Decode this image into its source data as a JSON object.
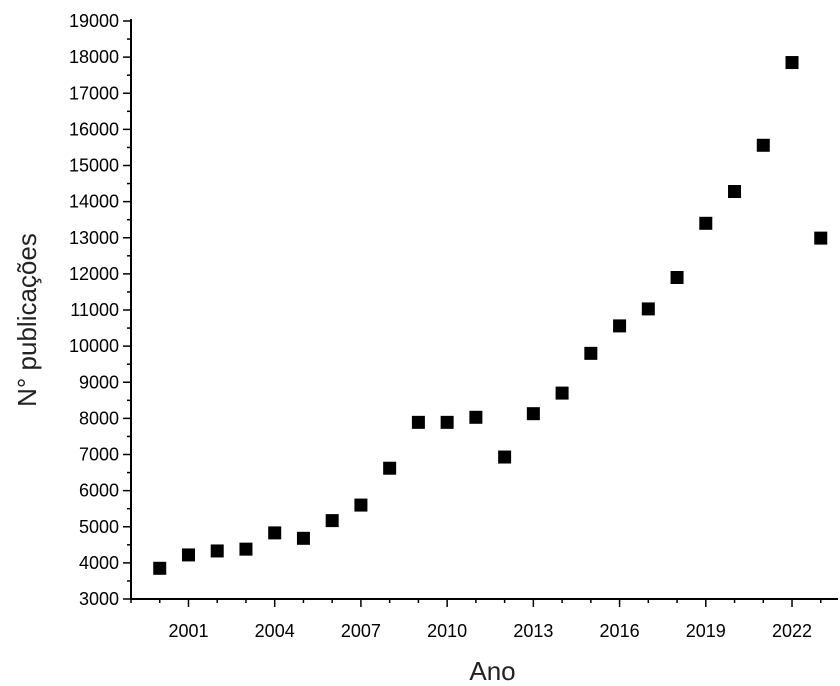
{
  "chart_data": {
    "type": "scatter",
    "title": "",
    "xlabel": "Ano",
    "ylabel": "N° publicações",
    "x": [
      2000,
      2001,
      2002,
      2003,
      2004,
      2005,
      2006,
      2007,
      2008,
      2009,
      2010,
      2011,
      2012,
      2013,
      2014,
      2015,
      2016,
      2017,
      2018,
      2019,
      2020,
      2021,
      2022,
      2023
    ],
    "y": [
      3850,
      4220,
      4330,
      4380,
      4830,
      4680,
      5170,
      5600,
      6620,
      7890,
      7890,
      8030,
      6930,
      8130,
      8700,
      9800,
      10560,
      11030,
      11900,
      13400,
      14280,
      15560,
      17850,
      12990
    ],
    "xticks": [
      "2001",
      "2004",
      "2007",
      "2010",
      "2013",
      "2016",
      "2019",
      "2022"
    ],
    "yticks": [
      "3000",
      "4000",
      "5000",
      "6000",
      "7000",
      "8000",
      "9000",
      "10000",
      "11000",
      "12000",
      "13000",
      "14000",
      "15000",
      "16000",
      "17000",
      "18000",
      "19000"
    ],
    "xlim": [
      1999,
      2023.6
    ],
    "ylim": [
      3000,
      19000
    ],
    "grid": false,
    "marker": "square",
    "marker_color": "#000000"
  }
}
